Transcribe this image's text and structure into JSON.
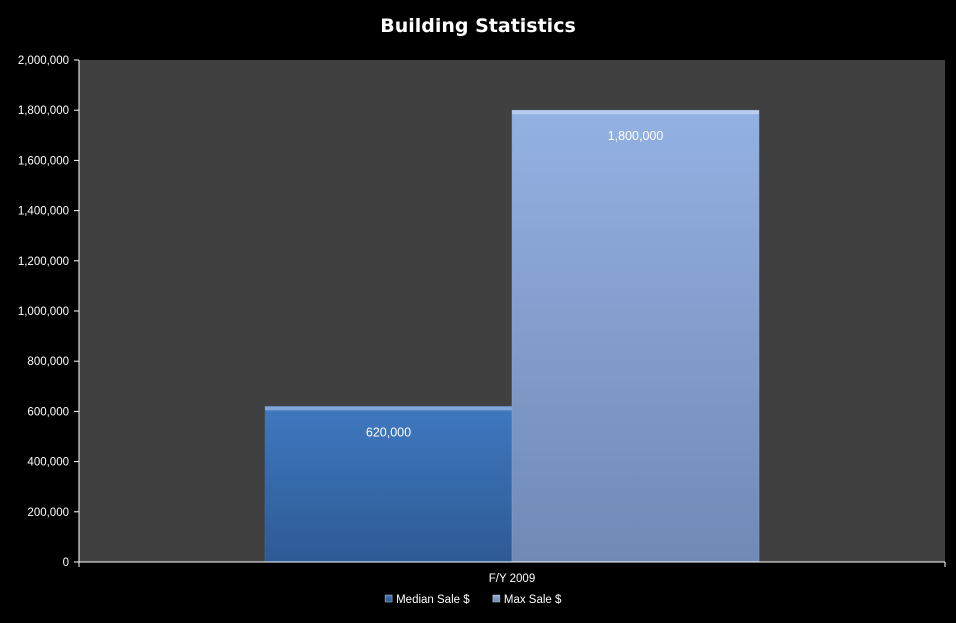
{
  "chart_data": {
    "type": "bar",
    "title": "Building Statistics",
    "categories": [
      "F/Y 2009"
    ],
    "series": [
      {
        "name": "Median Sale $",
        "values": [
          620000
        ],
        "data_labels": [
          "620,000"
        ],
        "color": "#3a6db0"
      },
      {
        "name": "Max Sale $",
        "values": [
          1800000
        ],
        "data_labels": [
          "1,800,000"
        ],
        "color": "#8ba8d8"
      }
    ],
    "ylim": [
      0,
      2000000
    ],
    "yticks": [
      0,
      200000,
      400000,
      600000,
      800000,
      1000000,
      1200000,
      1400000,
      1600000,
      1800000,
      2000000
    ],
    "ytick_labels": [
      "0",
      "200,000",
      "400,000",
      "600,000",
      "800,000",
      "1,000,000",
      "1,200,000",
      "1,400,000",
      "1,600,000",
      "1,800,000",
      "2,000,000"
    ],
    "grid": false,
    "legend": "bottom",
    "plot_background": "#404040",
    "background": "#000000"
  }
}
